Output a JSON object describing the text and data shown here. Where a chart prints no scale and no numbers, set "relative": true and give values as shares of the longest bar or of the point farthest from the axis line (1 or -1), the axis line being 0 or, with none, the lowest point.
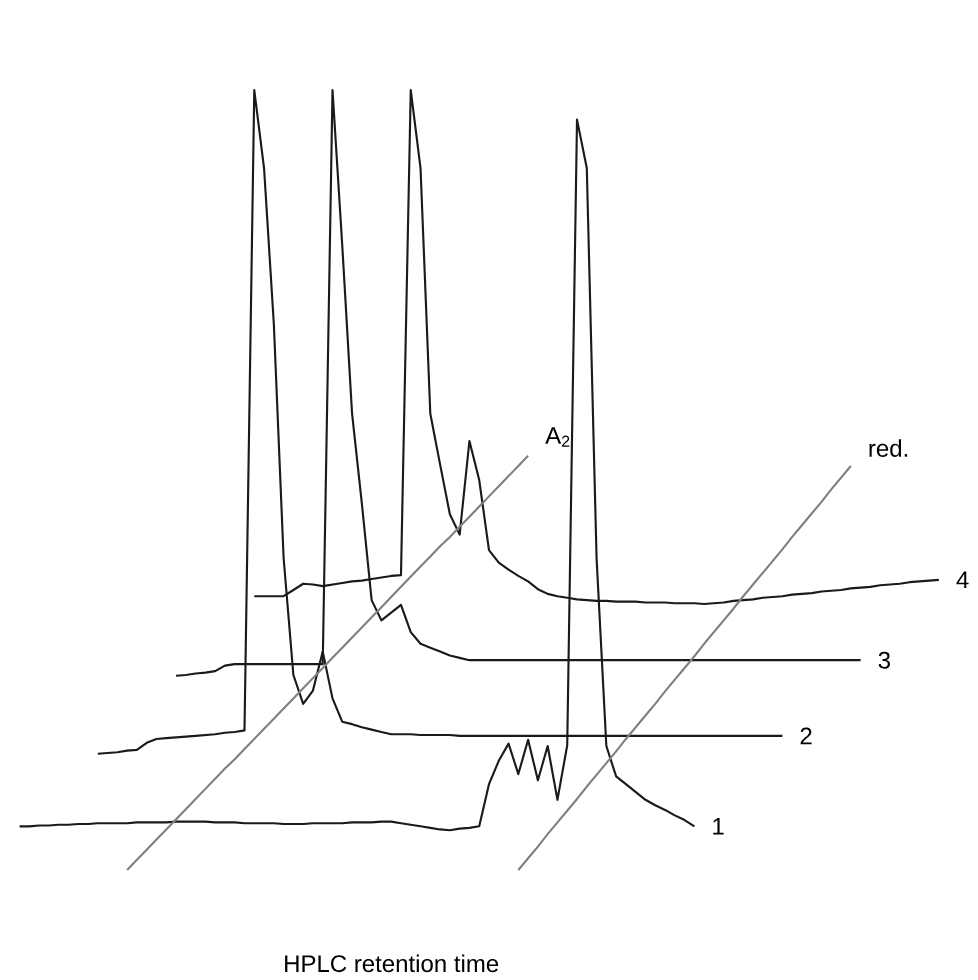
{
  "chart_data": {
    "type": "line",
    "relative": true,
    "xlabel": "HPLC retention time",
    "line_style": "solid",
    "categories": [
      null,
      null,
      null,
      null,
      null,
      null,
      null,
      null,
      null,
      null,
      null,
      null,
      null,
      null,
      null,
      null,
      null,
      null,
      null,
      null,
      null,
      null,
      null,
      null,
      null,
      null,
      null,
      null,
      null,
      null,
      null,
      null,
      null,
      null,
      null,
      null,
      null,
      null,
      null,
      null,
      null,
      null,
      null,
      null,
      null,
      null,
      null,
      null,
      null,
      null,
      null,
      null,
      null,
      null,
      null,
      null,
      null,
      null,
      null,
      null,
      null,
      null,
      null,
      null,
      null,
      null,
      null,
      null,
      null,
      null,
      null,
      null,
      null,
      null,
      null,
      null,
      null,
      null,
      null,
      null,
      null,
      null,
      null,
      null,
      null,
      null,
      null,
      null,
      null,
      null,
      null,
      null,
      null,
      null,
      null,
      null,
      null,
      null
    ],
    "series": [
      {
        "name": "1",
        "color": "#1a1a1a",
        "values": [
          null,
          null,
          0.056,
          0.056,
          0.057,
          0.057,
          0.058,
          0.058,
          0.059,
          0.059,
          0.06,
          0.06,
          0.06,
          0.06,
          0.061,
          0.061,
          0.061,
          0.061,
          0.062,
          0.062,
          0.062,
          0.062,
          0.061,
          0.061,
          0.061,
          0.06,
          0.06,
          0.06,
          0.06,
          0.059,
          0.059,
          0.059,
          0.06,
          0.06,
          0.06,
          0.06,
          0.061,
          0.061,
          0.061,
          0.062,
          0.062,
          0.06,
          0.058,
          0.056,
          0.054,
          0.052,
          0.051,
          0.053,
          0.054,
          0.056,
          0.11,
          0.14,
          0.162,
          0.123,
          0.167,
          0.115,
          0.159,
          0.09,
          0.16,
          0.962,
          0.9,
          0.4,
          0.159,
          0.12,
          0.11,
          0.1,
          0.09,
          0.083,
          0.077,
          0.07,
          0.064,
          0.056,
          null,
          null,
          null,
          null,
          null,
          null,
          null,
          null,
          null,
          null,
          null,
          null,
          null,
          null,
          null,
          null,
          null,
          null,
          null,
          null,
          null,
          null,
          null,
          null,
          null,
          null
        ]
      },
      {
        "name": "2",
        "color": "#1a1a1a",
        "values": [
          null,
          null,
          null,
          null,
          null,
          null,
          null,
          null,
          null,
          null,
          0.149,
          0.15,
          0.151,
          0.153,
          0.154,
          0.163,
          0.168,
          0.169,
          0.17,
          0.171,
          0.172,
          0.173,
          0.174,
          0.176,
          0.177,
          0.179,
          1,
          0.9,
          0.7,
          0.4,
          0.25,
          0.213,
          0.23,
          0.28,
          0.22,
          0.19,
          0.187,
          0.183,
          0.18,
          0.177,
          0.174,
          0.174,
          0.174,
          0.173,
          0.173,
          0.173,
          0.173,
          0.172,
          0.172,
          0.172,
          0.172,
          0.172,
          0.172,
          0.172,
          0.172,
          0.172,
          0.172,
          0.172,
          0.172,
          0.172,
          0.172,
          0.172,
          0.172,
          0.172,
          0.172,
          0.172,
          0.172,
          0.172,
          0.172,
          0.172,
          0.172,
          0.172,
          0.172,
          0.172,
          0.172,
          0.172,
          0.172,
          0.172,
          0.172,
          0.172,
          0.172,
          null,
          null,
          null,
          null,
          null,
          null,
          null,
          null,
          null,
          null,
          null,
          null,
          null,
          null,
          null,
          null,
          null
        ]
      },
      {
        "name": "3",
        "color": "#1a1a1a",
        "values": [
          null,
          null,
          null,
          null,
          null,
          null,
          null,
          null,
          null,
          null,
          null,
          null,
          null,
          null,
          null,
          null,
          null,
          null,
          0.249,
          0.25,
          0.252,
          0.253,
          0.255,
          0.262,
          0.264,
          0.264,
          0.264,
          0.264,
          0.264,
          0.264,
          0.264,
          0.264,
          0.264,
          0.264,
          1,
          0.8,
          0.585,
          0.47,
          0.346,
          0.32,
          0.33,
          0.34,
          0.305,
          0.29,
          0.285,
          0.28,
          0.275,
          0.272,
          0.269,
          0.269,
          0.269,
          0.269,
          0.269,
          0.269,
          0.269,
          0.269,
          0.269,
          0.269,
          0.269,
          0.269,
          0.269,
          0.269,
          0.269,
          0.269,
          0.269,
          0.269,
          0.269,
          0.269,
          0.269,
          0.269,
          0.269,
          0.269,
          0.269,
          0.269,
          0.269,
          0.269,
          0.269,
          0.269,
          0.269,
          0.269,
          0.269,
          0.269,
          0.269,
          0.269,
          0.269,
          0.269,
          0.269,
          0.269,
          0.269,
          null,
          null,
          null,
          null,
          null,
          null,
          null,
          null,
          null
        ]
      },
      {
        "name": "4",
        "color": "#1a1a1a",
        "values": [
          null,
          null,
          null,
          null,
          null,
          null,
          null,
          null,
          null,
          null,
          null,
          null,
          null,
          null,
          null,
          null,
          null,
          null,
          null,
          null,
          null,
          null,
          null,
          null,
          null,
          null,
          0.351,
          0.351,
          0.351,
          0.351,
          0.359,
          0.367,
          0.366,
          0.364,
          0.366,
          0.368,
          0.37,
          0.371,
          0.373,
          0.375,
          0.377,
          0.378,
          1,
          0.9,
          0.585,
          0.52,
          0.456,
          0.43,
          0.55,
          0.5,
          0.41,
          0.394,
          0.385,
          0.377,
          0.37,
          0.36,
          0.354,
          0.351,
          0.349,
          0.347,
          0.346,
          0.345,
          0.345,
          0.344,
          0.344,
          0.344,
          0.343,
          0.343,
          0.343,
          0.342,
          0.342,
          0.342,
          0.341,
          0.342,
          0.343,
          0.345,
          0.346,
          0.347,
          0.349,
          0.35,
          0.351,
          0.353,
          0.354,
          0.355,
          0.357,
          0.358,
          0.359,
          0.361,
          0.362,
          0.363,
          0.365,
          0.366,
          0.367,
          0.369,
          0.37,
          0.371,
          0.372,
          null
        ]
      },
      {
        "name": "A$_{2}$",
        "color": "#808080",
        "values": [
          null,
          null,
          null,
          null,
          null,
          null,
          null,
          null,
          null,
          null,
          null,
          null,
          null,
          0,
          0.013,
          0.026,
          0.039,
          0.052,
          0.065,
          0.078,
          0.091,
          0.104,
          0.117,
          0.13,
          0.142,
          0.155,
          0.168,
          0.181,
          0.194,
          0.207,
          0.22,
          0.233,
          0.246,
          0.259,
          0.272,
          0.285,
          0.298,
          0.311,
          0.324,
          0.337,
          0.35,
          0.363,
          0.376,
          0.389,
          0.402,
          0.415,
          0.427,
          0.44,
          0.453,
          0.466,
          0.479,
          0.492,
          0.505,
          0.518,
          0.531,
          null,
          null,
          null,
          null,
          null,
          null,
          null,
          null,
          null,
          null,
          null,
          null,
          null,
          null,
          null,
          null,
          null,
          null,
          null,
          null,
          null,
          null,
          null,
          null,
          null,
          null,
          null,
          null,
          null,
          null,
          null,
          null,
          null,
          null,
          null,
          null,
          null,
          null,
          null,
          null,
          null,
          null,
          null
        ]
      },
      {
        "name": "red.",
        "color": "#808080",
        "values": [
          null,
          null,
          null,
          null,
          null,
          null,
          null,
          null,
          null,
          null,
          null,
          null,
          null,
          null,
          null,
          null,
          null,
          null,
          null,
          null,
          null,
          null,
          null,
          null,
          null,
          null,
          null,
          null,
          null,
          null,
          null,
          null,
          null,
          null,
          null,
          null,
          null,
          null,
          null,
          null,
          null,
          null,
          null,
          null,
          null,
          null,
          null,
          null,
          null,
          null,
          null,
          null,
          null,
          0,
          0.015,
          0.03,
          0.046,
          0.061,
          0.076,
          0.091,
          0.107,
          0.122,
          0.137,
          0.152,
          0.168,
          0.183,
          0.198,
          0.213,
          0.229,
          0.244,
          0.259,
          0.274,
          0.29,
          0.305,
          0.32,
          0.335,
          0.351,
          0.366,
          0.381,
          0.396,
          0.411,
          0.427,
          0.442,
          0.457,
          0.472,
          0.488,
          0.503,
          0.518,
          null,
          null,
          null,
          null,
          null,
          null,
          null,
          null,
          null,
          null
        ]
      }
    ]
  }
}
